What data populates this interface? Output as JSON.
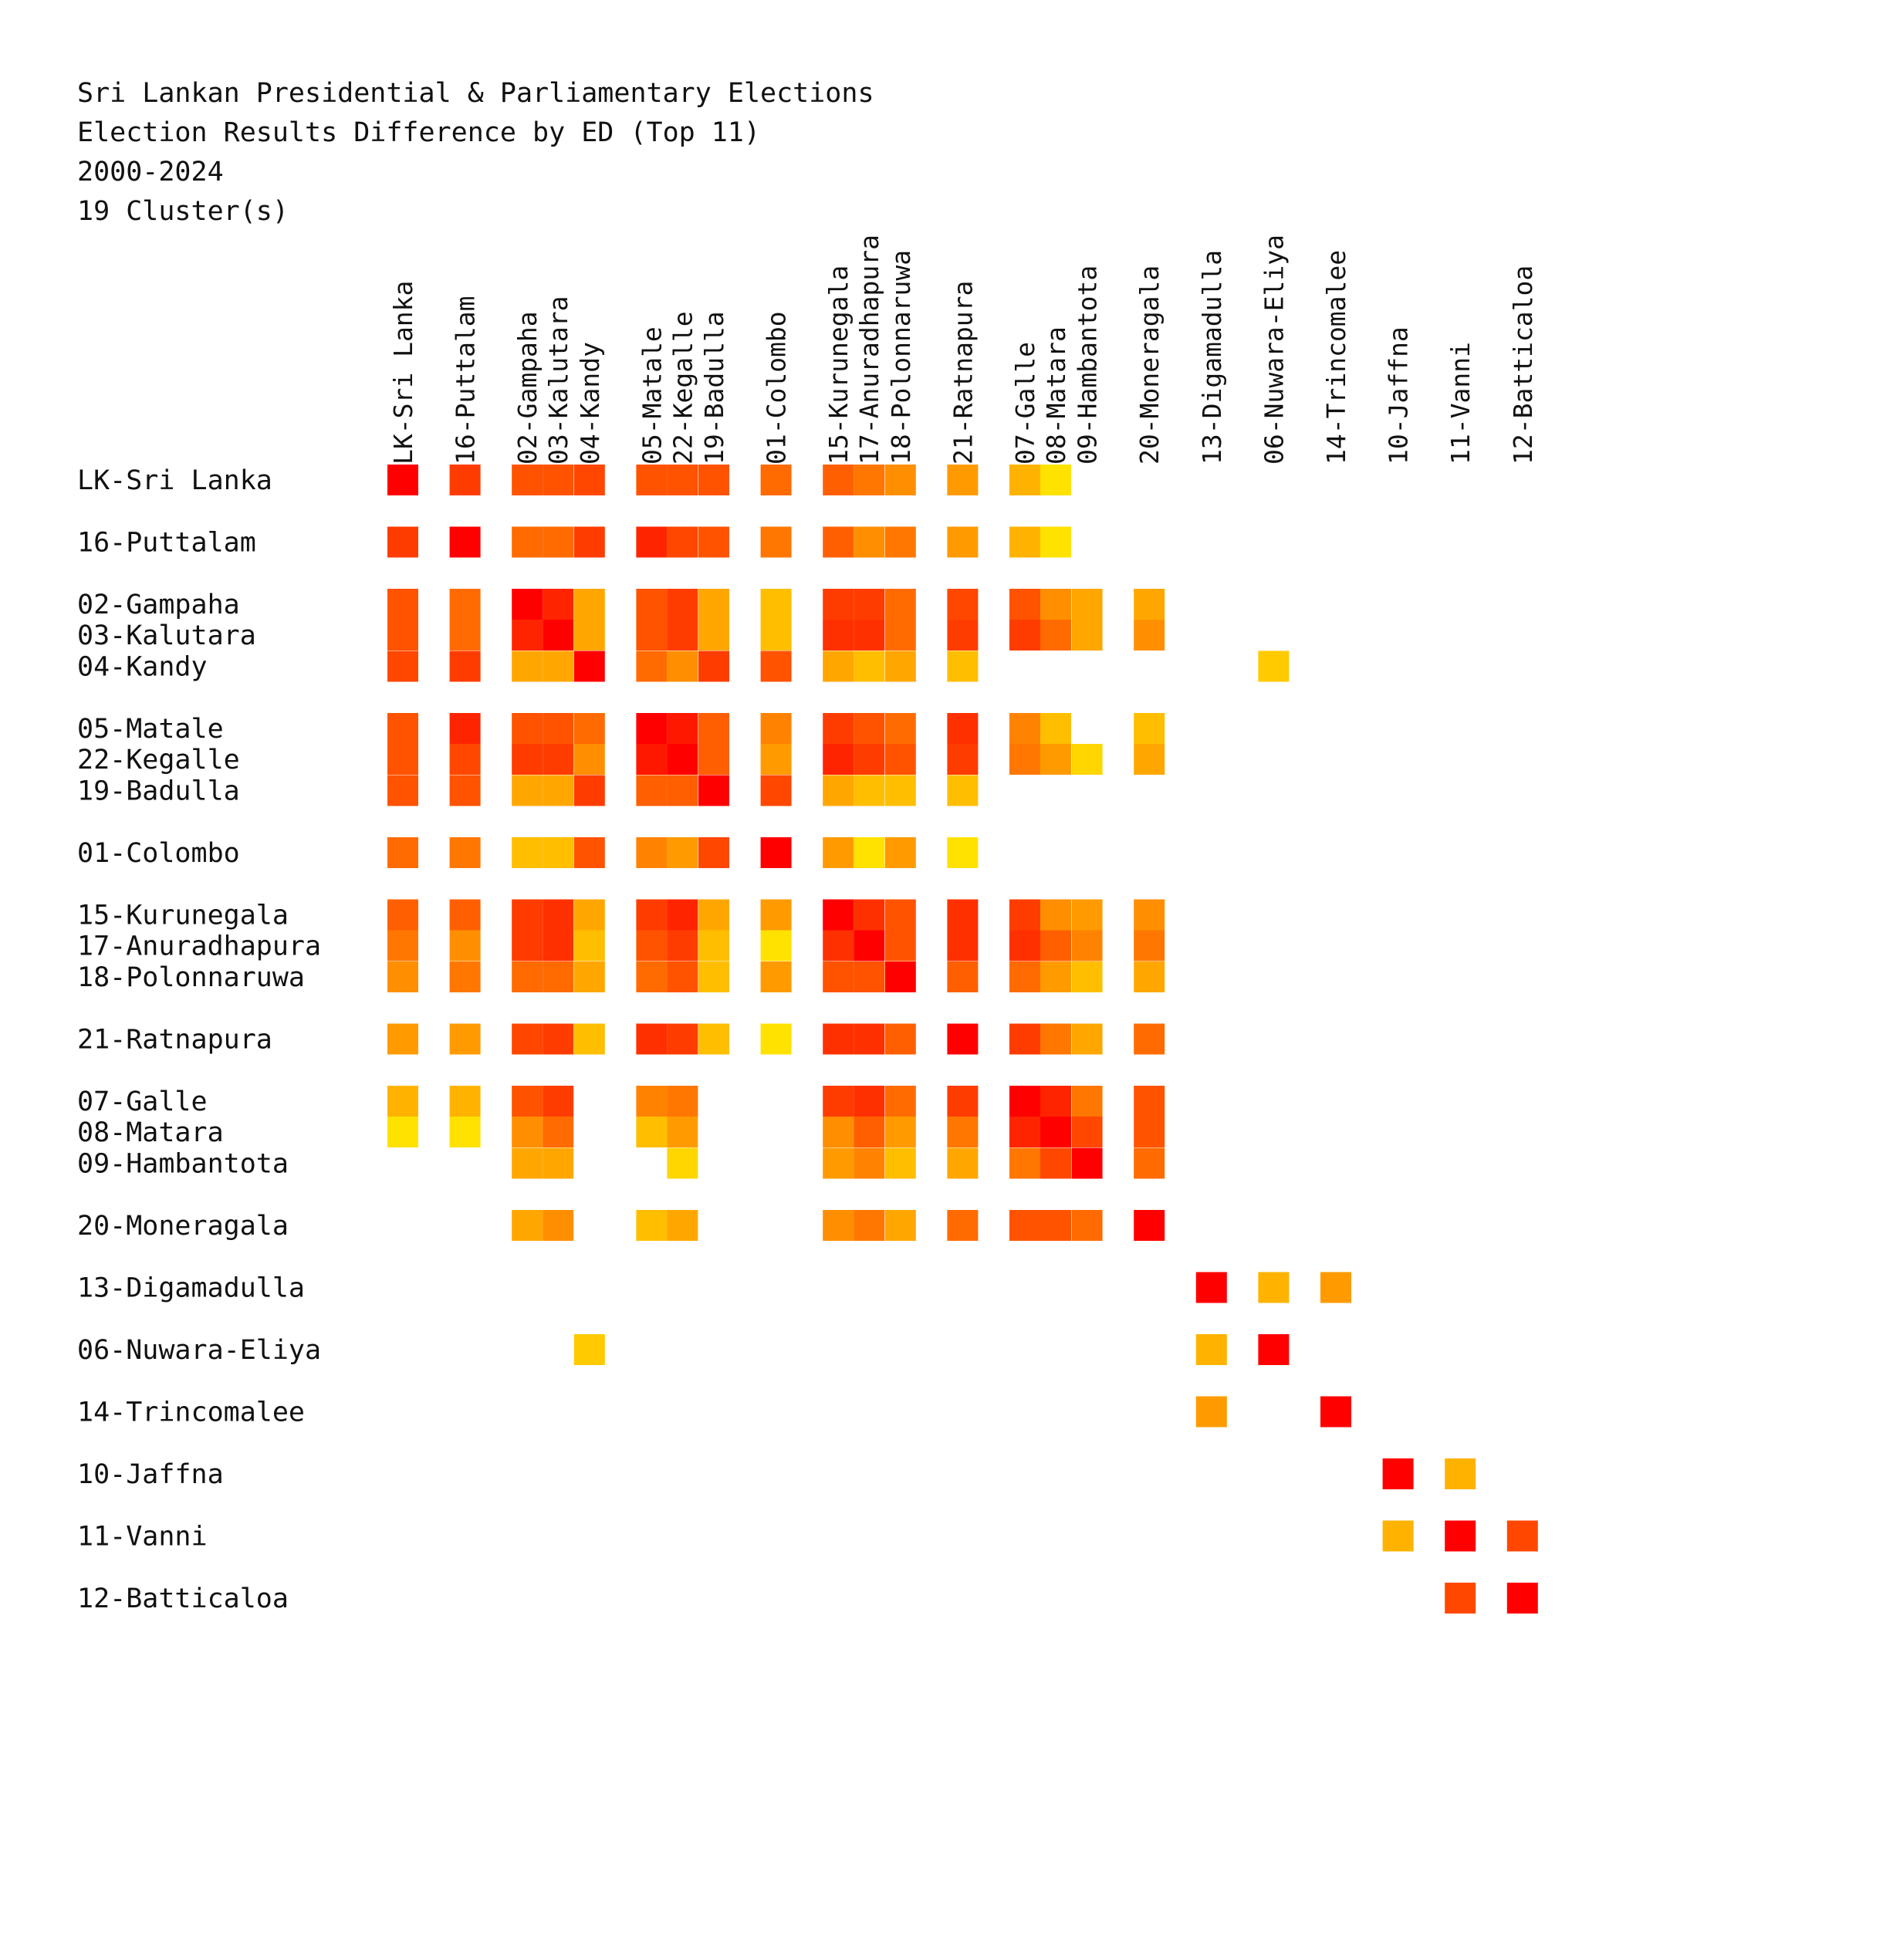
{
  "chart_data": {
    "type": "heatmap",
    "title_lines": [
      "Sri Lankan Presidential & Parliamentary Elections",
      "Election Results Difference by ED (Top 11)",
      "2000-2024",
      "19 Cluster(s)"
    ],
    "color_scale": {
      "low": "#ffee00",
      "high": "#ff0000",
      "min": 0,
      "max": 1
    },
    "groups": [
      [
        "LK-Sri Lanka"
      ],
      [
        "16-Puttalam"
      ],
      [
        "02-Gampaha",
        "03-Kalutara"
      ],
      [
        "04-Kandy"
      ],
      [
        "05-Matale",
        "22-Kegalle"
      ],
      [
        "19-Badulla"
      ],
      [
        "01-Colombo"
      ],
      [
        "15-Kurunegala",
        "17-Anuradhapura"
      ],
      [
        "18-Polonnaruwa"
      ],
      [
        "21-Ratnapura"
      ],
      [
        "07-Galle",
        "08-Matara"
      ],
      [
        "09-Hambantota"
      ],
      [
        "20-Moneragala"
      ],
      [
        "13-Digamadulla"
      ],
      [
        "06-Nuwara-Eliya"
      ],
      [
        "14-Trincomalee"
      ],
      [
        "10-Jaffna"
      ],
      [
        "11-Vanni"
      ],
      [
        "12-Batticaloa"
      ]
    ],
    "labels": [
      "LK-Sri Lanka",
      "16-Puttalam",
      "02-Gampaha",
      "03-Kalutara",
      "04-Kandy",
      "05-Matale",
      "22-Kegalle",
      "19-Badulla",
      "01-Colombo",
      "15-Kurunegala",
      "17-Anuradhapura",
      "18-Polonnaruwa",
      "21-Ratnapura",
      "07-Galle",
      "08-Matara",
      "09-Hambantota",
      "20-Moneragala",
      "13-Digamadulla",
      "06-Nuwara-Eliya",
      "14-Trincomalee",
      "10-Jaffna",
      "11-Vanni",
      "12-Batticaloa"
    ],
    "values": [
      [
        1.0,
        0.75,
        0.65,
        0.65,
        0.7,
        0.65,
        0.65,
        0.65,
        0.55,
        0.6,
        0.5,
        0.4,
        0.35,
        0.25,
        0.05,
        null,
        null,
        null,
        null,
        null,
        null,
        null,
        null
      ],
      [
        0.75,
        1.0,
        0.55,
        0.55,
        0.75,
        0.85,
        0.7,
        0.65,
        0.5,
        0.6,
        0.4,
        0.5,
        0.35,
        0.25,
        0.05,
        null,
        null,
        null,
        null,
        null,
        null,
        null,
        null
      ],
      [
        0.65,
        0.55,
        1.0,
        0.85,
        0.3,
        0.65,
        0.75,
        0.3,
        0.2,
        0.75,
        0.75,
        0.55,
        0.7,
        0.65,
        0.4,
        0.3,
        0.3,
        null,
        null,
        null,
        null,
        null,
        null
      ],
      [
        0.65,
        0.55,
        0.85,
        1.0,
        0.3,
        0.65,
        0.75,
        0.3,
        0.2,
        0.8,
        0.8,
        0.55,
        0.75,
        0.75,
        0.55,
        0.3,
        0.4,
        null,
        null,
        null,
        null,
        null,
        null
      ],
      [
        0.7,
        0.75,
        0.3,
        0.3,
        1.0,
        0.55,
        0.4,
        0.75,
        0.65,
        0.3,
        0.2,
        0.3,
        0.2,
        null,
        null,
        null,
        null,
        null,
        0.15,
        null,
        null,
        null,
        null
      ],
      [
        0.65,
        0.85,
        0.65,
        0.65,
        0.55,
        1.0,
        0.9,
        0.6,
        0.45,
        0.75,
        0.65,
        0.55,
        0.8,
        0.45,
        0.2,
        null,
        0.2,
        null,
        null,
        null,
        null,
        null,
        null
      ],
      [
        0.65,
        0.7,
        0.75,
        0.75,
        0.4,
        0.9,
        1.0,
        0.6,
        0.35,
        0.85,
        0.75,
        0.65,
        0.75,
        0.5,
        0.35,
        0.1,
        0.3,
        null,
        null,
        null,
        null,
        null,
        null
      ],
      [
        0.65,
        0.65,
        0.3,
        0.3,
        0.75,
        0.6,
        0.6,
        1.0,
        0.7,
        0.3,
        0.2,
        0.2,
        0.2,
        null,
        null,
        null,
        null,
        null,
        null,
        null,
        null,
        null,
        null
      ],
      [
        0.55,
        0.5,
        0.2,
        0.2,
        0.65,
        0.45,
        0.35,
        0.7,
        1.0,
        0.35,
        0.05,
        0.35,
        0.05,
        null,
        null,
        null,
        null,
        null,
        null,
        null,
        null,
        null,
        null
      ],
      [
        0.6,
        0.6,
        0.75,
        0.8,
        0.3,
        0.75,
        0.85,
        0.3,
        0.35,
        1.0,
        0.8,
        0.65,
        0.8,
        0.75,
        0.4,
        0.35,
        0.4,
        null,
        null,
        null,
        null,
        null,
        null
      ],
      [
        0.5,
        0.4,
        0.75,
        0.8,
        0.2,
        0.65,
        0.75,
        0.2,
        0.05,
        0.8,
        1.0,
        0.65,
        0.8,
        0.8,
        0.6,
        0.45,
        0.5,
        null,
        null,
        null,
        null,
        null,
        null
      ],
      [
        0.4,
        0.5,
        0.55,
        0.55,
        0.3,
        0.55,
        0.65,
        0.2,
        0.35,
        0.65,
        0.65,
        1.0,
        0.6,
        0.55,
        0.35,
        0.2,
        0.3,
        null,
        null,
        null,
        null,
        null,
        null
      ],
      [
        0.35,
        0.35,
        0.7,
        0.75,
        0.2,
        0.8,
        0.75,
        0.2,
        0.05,
        0.8,
        0.8,
        0.6,
        1.0,
        0.75,
        0.5,
        0.3,
        0.55,
        null,
        null,
        null,
        null,
        null,
        null
      ],
      [
        0.25,
        0.25,
        0.65,
        0.75,
        null,
        0.45,
        0.5,
        null,
        null,
        0.75,
        0.8,
        0.55,
        0.75,
        1.0,
        0.85,
        0.5,
        0.65,
        null,
        null,
        null,
        null,
        null,
        null
      ],
      [
        0.05,
        0.05,
        0.4,
        0.55,
        null,
        0.2,
        0.35,
        null,
        null,
        0.4,
        0.6,
        0.35,
        0.5,
        0.85,
        1.0,
        0.7,
        0.65,
        null,
        null,
        null,
        null,
        null,
        null
      ],
      [
        null,
        null,
        0.3,
        0.3,
        null,
        null,
        0.1,
        null,
        null,
        0.35,
        0.45,
        0.2,
        0.3,
        0.5,
        0.7,
        1.0,
        0.55,
        null,
        null,
        null,
        null,
        null,
        null
      ],
      [
        null,
        null,
        0.3,
        0.4,
        null,
        0.2,
        0.3,
        null,
        null,
        0.4,
        0.5,
        0.3,
        0.55,
        0.65,
        0.65,
        0.55,
        1.0,
        null,
        null,
        null,
        null,
        null,
        null
      ],
      [
        null,
        null,
        null,
        null,
        null,
        null,
        null,
        null,
        null,
        null,
        null,
        null,
        null,
        null,
        null,
        null,
        null,
        1.0,
        0.25,
        0.35,
        null,
        null,
        null
      ],
      [
        null,
        null,
        null,
        null,
        0.15,
        null,
        null,
        null,
        null,
        null,
        null,
        null,
        null,
        null,
        null,
        null,
        null,
        0.25,
        1.0,
        null,
        null,
        null,
        null
      ],
      [
        null,
        null,
        null,
        null,
        null,
        null,
        null,
        null,
        null,
        null,
        null,
        null,
        null,
        null,
        null,
        null,
        null,
        0.35,
        null,
        1.0,
        null,
        null,
        null
      ],
      [
        null,
        null,
        null,
        null,
        null,
        null,
        null,
        null,
        null,
        null,
        null,
        null,
        null,
        null,
        null,
        null,
        null,
        null,
        null,
        null,
        1.0,
        0.25,
        null
      ],
      [
        null,
        null,
        null,
        null,
        null,
        null,
        null,
        null,
        null,
        null,
        null,
        null,
        null,
        null,
        null,
        null,
        null,
        null,
        null,
        null,
        0.25,
        1.0,
        0.7
      ],
      [
        null,
        null,
        null,
        null,
        null,
        null,
        null,
        null,
        null,
        null,
        null,
        null,
        null,
        null,
        null,
        null,
        null,
        null,
        null,
        null,
        null,
        0.7,
        1.0
      ]
    ]
  }
}
